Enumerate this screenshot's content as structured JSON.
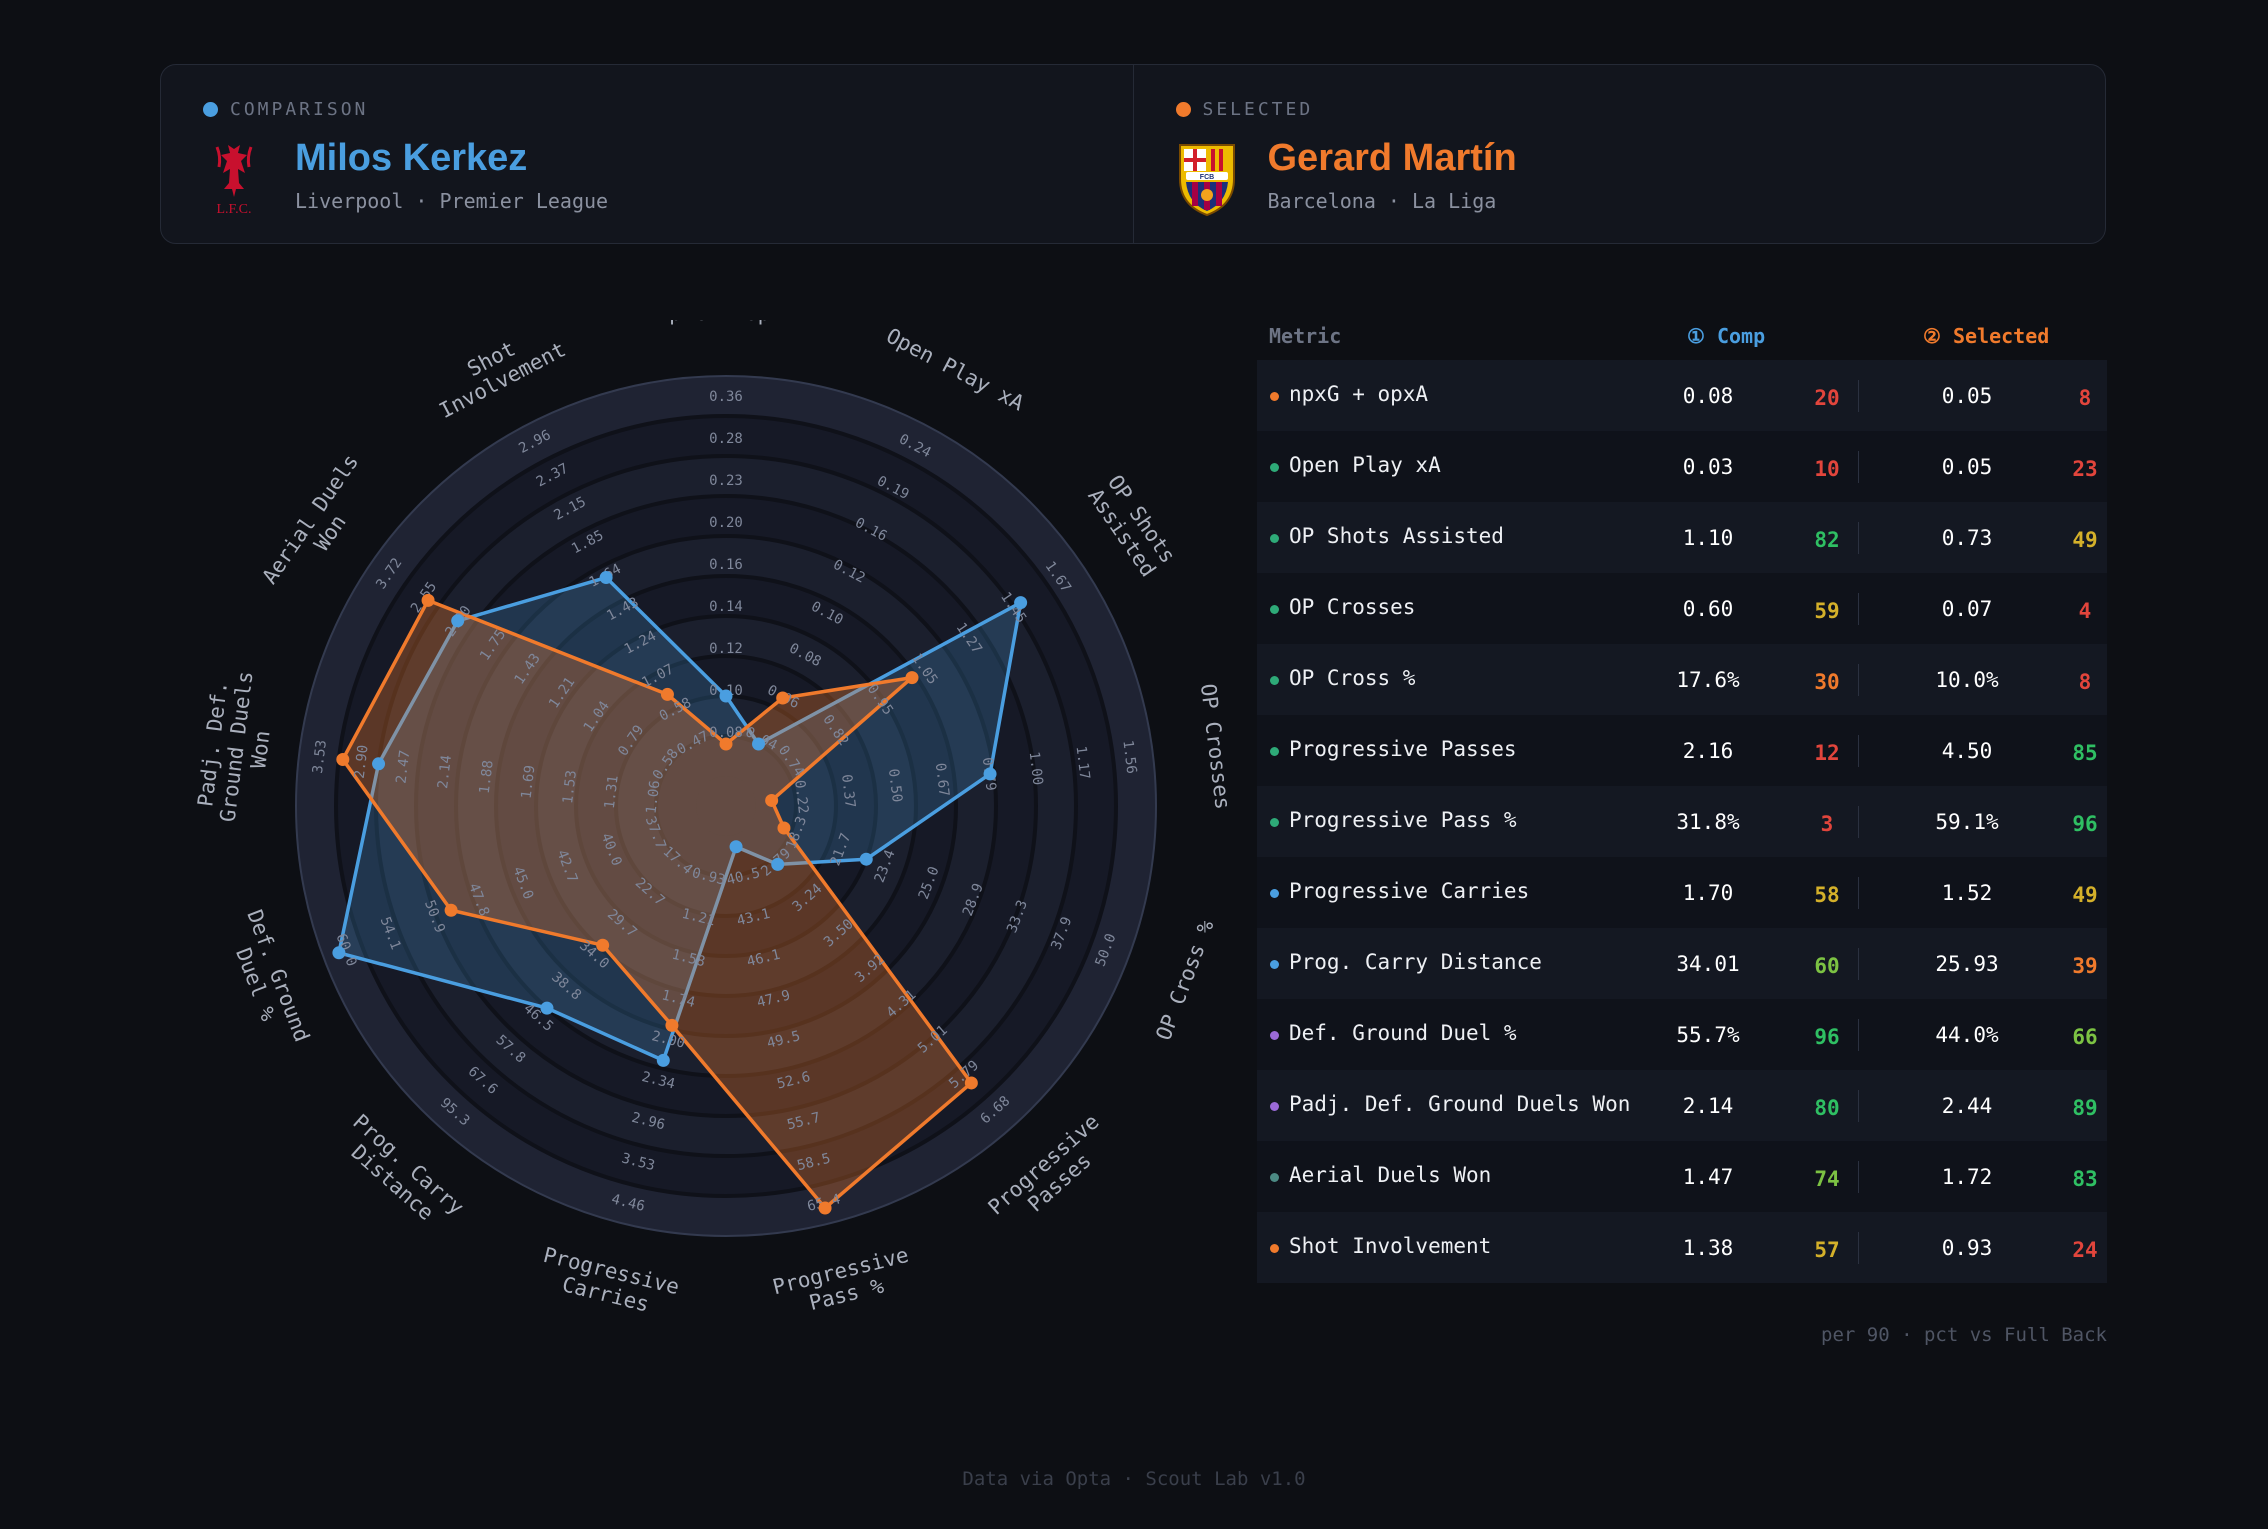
{
  "comparison": {
    "tag": "COMPARISON",
    "name": "Milos Kerkez",
    "meta": "Liverpool · Premier League",
    "crest_text": "L.F.C.",
    "color": "#4a9ee0"
  },
  "selected": {
    "tag": "SELECTED",
    "name": "Gerard Martín",
    "meta": "Barcelona · La Liga",
    "crest_text": "FCB",
    "color": "#f07a2c"
  },
  "table": {
    "headers": {
      "metric": "Metric",
      "comp": "① Comp",
      "selected": "② Selected"
    },
    "rows": [
      {
        "metric": "npxG + opxA",
        "comp_value": "0.08",
        "comp_pct": "20",
        "sel_value": "0.05",
        "sel_pct": "8",
        "dot": "#f07a2c"
      },
      {
        "metric": "Open Play xA",
        "comp_value": "0.03",
        "comp_pct": "10",
        "sel_value": "0.05",
        "sel_pct": "23",
        "dot": "#2eaa78"
      },
      {
        "metric": "OP Shots Assisted",
        "comp_value": "1.10",
        "comp_pct": "82",
        "sel_value": "0.73",
        "sel_pct": "49",
        "dot": "#2eaa78"
      },
      {
        "metric": "OP Crosses",
        "comp_value": "0.60",
        "comp_pct": "59",
        "sel_value": "0.07",
        "sel_pct": "4",
        "dot": "#2eaa78"
      },
      {
        "metric": "OP Cross %",
        "comp_value": "17.6%",
        "comp_pct": "30",
        "sel_value": "10.0%",
        "sel_pct": "8",
        "dot": "#2eaa78"
      },
      {
        "metric": "Progressive Passes",
        "comp_value": "2.16",
        "comp_pct": "12",
        "sel_value": "4.50",
        "sel_pct": "85",
        "dot": "#2eaa78"
      },
      {
        "metric": "Progressive Pass %",
        "comp_value": "31.8%",
        "comp_pct": "3",
        "sel_value": "59.1%",
        "sel_pct": "96",
        "dot": "#2eaa78"
      },
      {
        "metric": "Progressive Carries",
        "comp_value": "1.70",
        "comp_pct": "58",
        "sel_value": "1.52",
        "sel_pct": "49",
        "dot": "#4a9ee0"
      },
      {
        "metric": "Prog. Carry Distance",
        "comp_value": "34.01",
        "comp_pct": "60",
        "sel_value": "25.93",
        "sel_pct": "39",
        "dot": "#4a9ee0"
      },
      {
        "metric": "Def. Ground Duel %",
        "comp_value": "55.7%",
        "comp_pct": "96",
        "sel_value": "44.0%",
        "sel_pct": "66",
        "dot": "#9b6ad8"
      },
      {
        "metric": "Padj. Def. Ground Duels Won",
        "comp_value": "2.14",
        "comp_pct": "80",
        "sel_value": "2.44",
        "sel_pct": "89",
        "dot": "#9b6ad8"
      },
      {
        "metric": "Aerial Duels Won",
        "comp_value": "1.47",
        "comp_pct": "74",
        "sel_value": "1.72",
        "sel_pct": "83",
        "dot": "#4c8a84"
      },
      {
        "metric": "Shot Involvement",
        "comp_value": "1.38",
        "comp_pct": "57",
        "sel_value": "0.93",
        "sel_pct": "24",
        "dot": "#f07a2c"
      }
    ],
    "note": "per 90 · pct vs Full Back"
  },
  "footer": "Data via Opta · Scout Lab v1.0",
  "chart_data": {
    "type": "radar",
    "axes": [
      {
        "label": [
          "npxG + opxA"
        ],
        "ticks": [
          "0.08",
          "0.10",
          "0.12",
          "0.14",
          "0.16",
          "0.20",
          "0.23",
          "0.28",
          "0.36"
        ]
      },
      {
        "label": [
          "Open Play xA"
        ],
        "ticks": [
          "0.04",
          "0.06",
          "0.08",
          "0.10",
          "0.12",
          "0.16",
          "0.19",
          "0.24"
        ]
      },
      {
        "label": [
          "OP Shots",
          "Assisted"
        ],
        "ticks": [
          "0.74",
          "0.82",
          "0.95",
          "1.05",
          "1.27",
          "1.45",
          "1.67"
        ]
      },
      {
        "label": [
          "OP Crosses"
        ],
        "ticks": [
          "0.22",
          "0.37",
          "0.50",
          "0.67",
          "0.79",
          "1.00",
          "1.17",
          "1.56"
        ]
      },
      {
        "label": [
          "OP Cross %"
        ],
        "ticks": [
          "18.3",
          "21.7",
          "23.4",
          "25.0",
          "28.9",
          "33.3",
          "37.9",
          "50.0"
        ]
      },
      {
        "label": [
          "Progressive",
          "Passes"
        ],
        "ticks": [
          "2.79",
          "3.24",
          "3.50",
          "3.92",
          "4.31",
          "5.01",
          "5.79",
          "6.68"
        ]
      },
      {
        "label": [
          "Progressive",
          "Pass %"
        ],
        "ticks": [
          "40.5",
          "43.1",
          "46.1",
          "47.9",
          "49.5",
          "52.6",
          "55.7",
          "58.5",
          "65.4"
        ]
      },
      {
        "label": [
          "Progressive",
          "Carries"
        ],
        "ticks": [
          "0.93",
          "1.21",
          "1.58",
          "1.74",
          "2.00",
          "2.34",
          "2.96",
          "3.53",
          "4.46"
        ]
      },
      {
        "label": [
          "Prog. Carry",
          "Distance"
        ],
        "ticks": [
          "17.4",
          "22.7",
          "29.7",
          "34.0",
          "38.8",
          "46.5",
          "57.8",
          "67.6",
          "95.3"
        ]
      },
      {
        "label": [
          "Def. Ground",
          "Duel %"
        ],
        "ticks": [
          "37.7",
          "40.0",
          "42.7",
          "45.0",
          "47.8",
          "50.9",
          "54.1",
          "60.0"
        ]
      },
      {
        "label": [
          "Padj. Def.",
          "Ground Duels",
          "Won"
        ],
        "ticks": [
          "1.06",
          "1.31",
          "1.53",
          "1.69",
          "1.88",
          "2.14",
          "2.47",
          "2.90",
          "3.53"
        ]
      },
      {
        "label": [
          "Aerial Duels",
          "Won"
        ],
        "ticks": [
          "0.58",
          "0.79",
          "1.04",
          "1.21",
          "1.43",
          "1.75",
          "2.00",
          "2.55",
          "3.72"
        ]
      },
      {
        "label": [
          "Shot",
          "Involvement"
        ],
        "ticks": [
          "0.47",
          "0.58",
          "1.07",
          "1.24",
          "1.43",
          "1.64",
          "1.85",
          "2.15",
          "2.37",
          "2.96"
        ]
      }
    ],
    "series": [
      {
        "name": "Milos Kerkez",
        "role": "comparison",
        "color": "#4a9ee0",
        "percentiles": [
          20,
          10,
          82,
          59,
          30,
          12,
          3,
          58,
          60,
          96,
          80,
          74,
          57
        ]
      },
      {
        "name": "Gerard Martín",
        "role": "selected",
        "color": "#f07a2c",
        "percentiles": [
          8,
          23,
          49,
          4,
          8,
          85,
          96,
          49,
          39,
          66,
          89,
          83,
          24
        ]
      }
    ],
    "rings": 10,
    "range": [
      0,
      100
    ]
  }
}
